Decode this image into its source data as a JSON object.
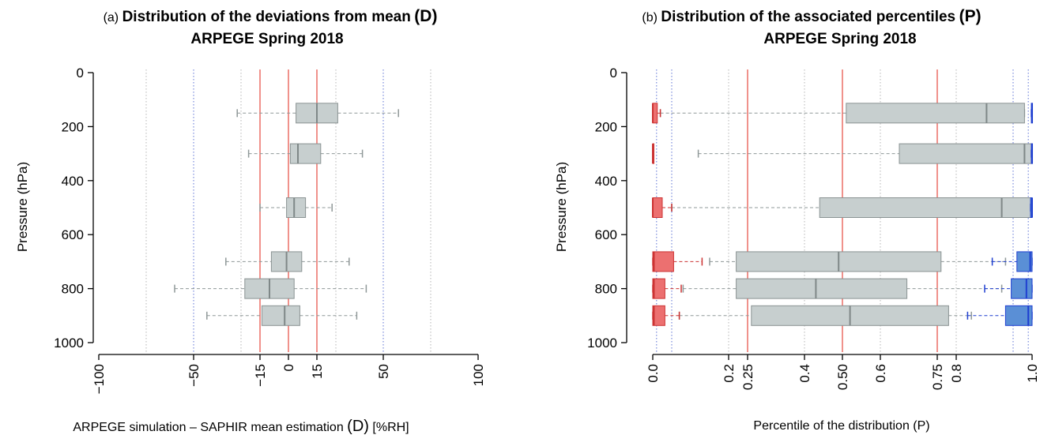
{
  "chart_data": [
    {
      "type": "box",
      "panel_tag": "(a)",
      "title_main": "Distribution of the deviations from mean",
      "title_symbol": "(D)",
      "subtitle": "ARPEGE Spring 2018",
      "xlabel": "ARPEGE simulation – SAPHIR mean estimation",
      "xlabel_symbol": "(D)",
      "xlabel_unit": "[%RH]",
      "ylabel": "Pressure (hPa)",
      "xlim": [
        -100,
        100
      ],
      "ylim": [
        1000,
        0
      ],
      "x_ticks": [
        -100,
        -50,
        -15,
        0,
        15,
        50,
        100
      ],
      "x_tick_labels": [
        "−100",
        "−50",
        "−15",
        "0",
        "15",
        "50",
        "100"
      ],
      "y_ticks": [
        0,
        200,
        400,
        600,
        800,
        1000
      ],
      "y_tick_labels": [
        "0",
        "200",
        "400",
        "600",
        "800",
        "1000"
      ],
      "grid_dotted_gray": [
        -75,
        -25,
        25,
        75
      ],
      "grid_dotted_blue": [
        -50,
        50
      ],
      "ref_lines_red": [
        -15,
        0,
        15
      ],
      "boxes": [
        {
          "pressure": 150,
          "whisker_low": -27,
          "q1": 4,
          "median": 15,
          "q3": 26,
          "whisker_high": 58
        },
        {
          "pressure": 300,
          "whisker_low": -21,
          "q1": 1,
          "median": 5,
          "q3": 17,
          "whisker_high": 39
        },
        {
          "pressure": 500,
          "whisker_low": -15,
          "q1": -1,
          "median": 3,
          "q3": 9,
          "whisker_high": 23
        },
        {
          "pressure": 700,
          "whisker_low": -33,
          "q1": -9,
          "median": -1,
          "q3": 7,
          "whisker_high": 32
        },
        {
          "pressure": 800,
          "whisker_low": -60,
          "q1": -23,
          "median": -10,
          "q3": 3,
          "whisker_high": 41
        },
        {
          "pressure": 900,
          "whisker_low": -43,
          "q1": -14,
          "median": -2,
          "q3": 6,
          "whisker_high": 36
        }
      ],
      "colors": {
        "box": "#c7cfcf",
        "box_border": "#8a9393",
        "red_line": "#e8584e",
        "blue_grid": "#6b7fd8",
        "gray_grid": "#b4b4b4"
      }
    },
    {
      "type": "box",
      "panel_tag": "(b)",
      "title_main": "Distribution of the associated percentiles",
      "title_symbol": "(P)",
      "subtitle": "ARPEGE Spring 2018",
      "xlabel": "Percentile of the distribution (P)",
      "ylabel": "Pressure (hPa)",
      "xlim": [
        0,
        1
      ],
      "ylim": [
        1000,
        0
      ],
      "x_ticks": [
        0.0,
        0.2,
        0.25,
        0.4,
        0.5,
        0.6,
        0.75,
        0.8,
        1.0
      ],
      "x_tick_labels": [
        "0.0",
        "0.2",
        "0.25",
        "0.4",
        "0.50",
        "0.6",
        "0.75",
        "0.8",
        "1.0"
      ],
      "y_ticks": [
        0,
        200,
        400,
        600,
        800,
        1000
      ],
      "y_tick_labels": [
        "0",
        "200",
        "400",
        "600",
        "800",
        "1000"
      ],
      "grid_dotted_gray": [
        0.2,
        0.4,
        0.6,
        0.8
      ],
      "grid_dotted_blue": [
        0.01,
        0.05,
        0.95,
        0.99
      ],
      "ref_lines_red": [
        0.25,
        0.5,
        0.75
      ],
      "gray_boxes": [
        {
          "pressure": 150,
          "whisker_low": 0.02,
          "q1": 0.51,
          "median": 0.88,
          "q3": 0.98,
          "whisker_high": 0.98
        },
        {
          "pressure": 300,
          "whisker_low": 0.12,
          "q1": 0.65,
          "median": 0.98,
          "q3": 1.0,
          "whisker_high": 1.0
        },
        {
          "pressure": 500,
          "whisker_low": 0.05,
          "q1": 0.44,
          "median": 0.92,
          "q3": 1.0,
          "whisker_high": 1.0
        },
        {
          "pressure": 700,
          "whisker_low": 0.15,
          "q1": 0.22,
          "median": 0.49,
          "q3": 0.76,
          "whisker_high": 0.93
        },
        {
          "pressure": 800,
          "whisker_low": 0.08,
          "q1": 0.22,
          "median": 0.43,
          "q3": 0.67,
          "whisker_high": 0.92
        },
        {
          "pressure": 900,
          "whisker_low": 0.07,
          "q1": 0.26,
          "median": 0.52,
          "q3": 0.78,
          "whisker_high": 0.84
        }
      ],
      "red_boxes": [
        {
          "pressure": 150,
          "whisker_low": 0.0,
          "q1": 0.0,
          "median": 0.0,
          "q3": 0.012,
          "whisker_high": 0.02
        },
        {
          "pressure": 300,
          "whisker_low": 0.0,
          "q1": 0.0,
          "median": 0.0,
          "q3": 0.002,
          "whisker_high": 0.002
        },
        {
          "pressure": 500,
          "whisker_low": 0.0,
          "q1": 0.0,
          "median": 0.0,
          "q3": 0.025,
          "whisker_high": 0.05
        },
        {
          "pressure": 700,
          "whisker_low": 0.0,
          "q1": 0.0,
          "median": 0.003,
          "q3": 0.055,
          "whisker_high": 0.13
        },
        {
          "pressure": 800,
          "whisker_low": 0.0,
          "q1": 0.0,
          "median": 0.003,
          "q3": 0.032,
          "whisker_high": 0.075
        },
        {
          "pressure": 900,
          "whisker_low": 0.0,
          "q1": 0.0,
          "median": 0.003,
          "q3": 0.032,
          "whisker_high": 0.07
        }
      ],
      "blue_boxes": [
        {
          "pressure": 150,
          "whisker_low": 0.998,
          "q1": 0.998,
          "median": 1.0,
          "q3": 1.0,
          "whisker_high": 1.0
        },
        {
          "pressure": 300,
          "whisker_low": 0.998,
          "q1": 0.998,
          "median": 1.0,
          "q3": 1.0,
          "whisker_high": 1.0
        },
        {
          "pressure": 500,
          "whisker_low": 0.996,
          "q1": 0.996,
          "median": 1.0,
          "q3": 1.0,
          "whisker_high": 1.0
        },
        {
          "pressure": 700,
          "whisker_low": 0.895,
          "q1": 0.96,
          "median": 0.995,
          "q3": 1.0,
          "whisker_high": 1.0
        },
        {
          "pressure": 800,
          "whisker_low": 0.875,
          "q1": 0.945,
          "median": 0.985,
          "q3": 1.0,
          "whisker_high": 1.0
        },
        {
          "pressure": 900,
          "whisker_low": 0.83,
          "q1": 0.93,
          "median": 0.99,
          "q3": 1.0,
          "whisker_high": 1.0
        }
      ],
      "colors": {
        "box": "#c7cfcf",
        "box_border": "#8a9393",
        "red_box": "#ec7070",
        "red_border": "#cc3333",
        "blue_box": "#5a8fd6",
        "blue_border": "#1f3fd0",
        "red_line": "#e8584e",
        "blue_grid": "#6b7fd8",
        "gray_grid": "#b4b4b4"
      }
    }
  ]
}
